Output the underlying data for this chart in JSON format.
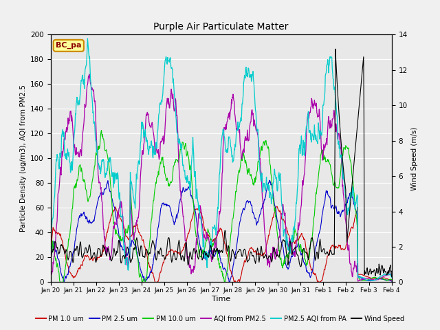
{
  "title": "Purple Air Particulate Matter",
  "xlabel": "Time",
  "ylabel_left": "Particle Density (ug/m3), AQI from PM2.5",
  "ylabel_right": "Wind Speed (m/s)",
  "ylim_left": [
    0,
    200
  ],
  "ylim_right": [
    0,
    14
  ],
  "station_label": "BC_pa",
  "background_color": "#f0f0f0",
  "plot_bg_color": "#e8e8e8",
  "series": {
    "PM1": {
      "color": "#cc0000",
      "lw": 0.8,
      "label": "PM 1.0 um"
    },
    "PM25": {
      "color": "#0000cc",
      "lw": 0.8,
      "label": "PM 2.5 um"
    },
    "PM10": {
      "color": "#00cc00",
      "lw": 0.8,
      "label": "PM 10.0 um"
    },
    "AQI_pm25": {
      "color": "#aa00aa",
      "lw": 0.9,
      "label": "AQI from PM2.5"
    },
    "AQI_pa": {
      "color": "#00cccc",
      "lw": 0.9,
      "label": "PM2.5 AQI from PA"
    },
    "wind": {
      "color": "#000000",
      "lw": 0.8,
      "label": "Wind Speed"
    }
  },
  "xtick_labels": [
    "Jan 20",
    "Jan 21",
    "Jan 22",
    "Jan 23",
    "Jan 24",
    "Jan 25",
    "Jan 26",
    "Jan 27",
    "Jan 28",
    "Jan 29",
    "Jan 30",
    "Jan 31",
    "Feb 1",
    "Feb 2",
    "Feb 3",
    "Feb 4"
  ],
  "yticks_left": [
    0,
    20,
    40,
    60,
    80,
    100,
    120,
    140,
    160,
    180,
    200
  ],
  "yticks_right": [
    0,
    2,
    4,
    6,
    8,
    10,
    12,
    14
  ],
  "seed": 42,
  "n_points": 840
}
